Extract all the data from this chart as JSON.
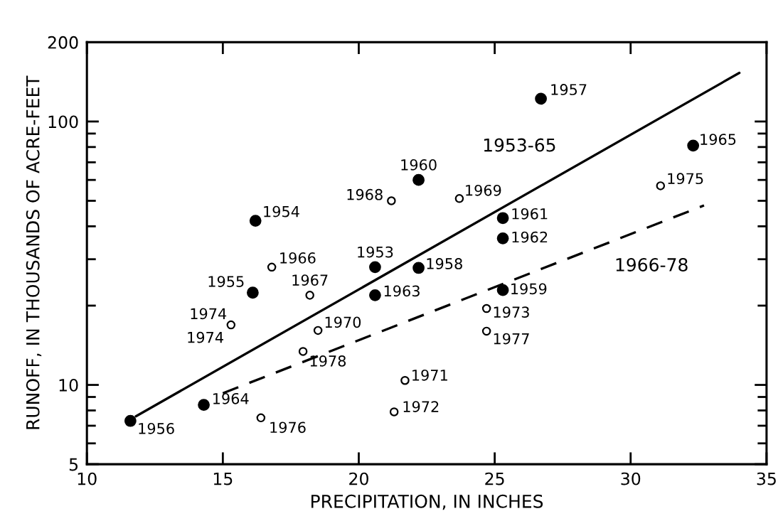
{
  "chart_data": {
    "type": "scatter",
    "xlabel": "PRECIPITATION, IN INCHES",
    "ylabel": "RUNOFF, IN THOUSANDS OF ACRE-FEET",
    "log": "y",
    "xlim": [
      10,
      35
    ],
    "xticks": [
      10,
      15,
      20,
      25,
      30,
      35
    ],
    "ylim": [
      5,
      200
    ],
    "yticks": [
      5,
      {
        "value": 6,
        "label": null
      },
      {
        "value": 7,
        "label": null
      },
      {
        "value": 8,
        "label": null
      },
      {
        "value": 9,
        "label": null
      },
      10,
      {
        "value": 20,
        "label": null
      },
      {
        "value": 30,
        "label": null
      },
      {
        "value": 40,
        "label": null
      },
      {
        "value": 50,
        "label": null
      },
      {
        "value": 60,
        "label": null
      },
      {
        "value": 70,
        "label": null
      },
      {
        "value": 80,
        "label": null
      },
      {
        "value": 90,
        "label": null
      },
      100,
      200
    ],
    "grid": false,
    "legend": false,
    "series": [
      {
        "marker": "circle",
        "color": "#000000",
        "x": [
          20.6,
          16.2,
          16.1,
          11.6,
          26.7,
          22.2,
          25.3,
          22.2,
          25.3,
          25.3,
          20.6,
          14.3,
          32.3
        ],
        "values": [
          28,
          42,
          22.4,
          7.3,
          122,
          27.8,
          22.9,
          60,
          43,
          36,
          21.9,
          8.4,
          81
        ]
      },
      {
        "marker": "circle",
        "color": "#000000",
        "x": [
          16.8,
          18.2,
          21.2,
          23.7,
          18.5,
          21.7,
          21.3,
          24.7,
          15.3,
          31.1,
          16.4,
          24.7,
          17.95
        ],
        "values": [
          28,
          21.9,
          50,
          51,
          16.1,
          10.4,
          7.9,
          19.5,
          16.9,
          57,
          7.5,
          16,
          13.4
        ]
      },
      {
        "type": "line",
        "name": "1953-65",
        "line_style": "solid",
        "color": "#000000",
        "x": [
          11.8,
          34.0
        ],
        "values": [
          7.6,
          153
        ]
      },
      {
        "type": "line",
        "name": "1966-78",
        "line_style": "dashed",
        "color": "#000000",
        "x": [
          15.0,
          32.7
        ],
        "values": [
          9.3,
          48
        ]
      }
    ],
    "annotations": [
      {
        "text": "1953",
        "x": 20.6,
        "y": 28
      },
      {
        "text": "1954",
        "x": 16.2,
        "y": 42
      },
      {
        "text": "1955",
        "x": 16.1,
        "y": 22.4
      },
      {
        "text": "1956",
        "x": 11.6,
        "y": 7.3
      },
      {
        "text": "1957",
        "x": 26.7,
        "y": 122
      },
      {
        "text": "1958",
        "x": 22.2,
        "y": 27.8
      },
      {
        "text": "1959",
        "x": 25.3,
        "y": 22.9
      },
      {
        "text": "1960",
        "x": 22.2,
        "y": 60
      },
      {
        "text": "1961",
        "x": 25.3,
        "y": 43
      },
      {
        "text": "1962",
        "x": 25.3,
        "y": 36
      },
      {
        "text": "1963",
        "x": 20.6,
        "y": 21.9
      },
      {
        "text": "1964",
        "x": 14.3,
        "y": 8.4
      },
      {
        "text": "1965",
        "x": 32.3,
        "y": 81
      },
      {
        "text": "1966",
        "x": 16.8,
        "y": 28
      },
      {
        "text": "1967",
        "x": 18.2,
        "y": 21.9
      },
      {
        "text": "1968",
        "x": 21.2,
        "y": 50
      },
      {
        "text": "1969",
        "x": 23.7,
        "y": 51
      },
      {
        "text": "1970",
        "x": 18.5,
        "y": 16.1
      },
      {
        "text": "1971",
        "x": 21.7,
        "y": 10.4
      },
      {
        "text": "1972",
        "x": 21.3,
        "y": 7.9
      },
      {
        "text": "1973",
        "x": 24.7,
        "y": 19.5
      },
      {
        "text": "1974",
        "x": 15.3,
        "y": 16.9
      },
      {
        "text": "1974",
        "x": 15.3,
        "y": 16.9
      },
      {
        "text": "1975",
        "x": 31.1,
        "y": 57
      },
      {
        "text": "1976",
        "x": 16.4,
        "y": 7.5
      },
      {
        "text": "1977",
        "x": 24.7,
        "y": 16
      },
      {
        "text": "1978",
        "x": 17.95,
        "y": 13.4
      }
    ]
  }
}
